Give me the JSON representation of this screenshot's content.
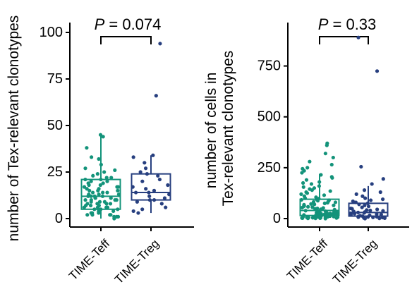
{
  "colors": {
    "teff": "#13937a",
    "treg": "#273f7f",
    "axis": "#000000"
  },
  "chart_data": [
    {
      "type": "box",
      "ylabel": "number of Tex-relevant clonotypes",
      "ylabel_lines": [
        "number of Tex-relevant clonotypes"
      ],
      "ylim": [
        0,
        100
      ],
      "yticks": [
        0,
        25,
        50,
        75,
        100
      ],
      "categories": [
        "TIME-Teff",
        "TIME-Treg"
      ],
      "annotation": {
        "label_italic": "P",
        "label_rest": " = 0.074"
      },
      "series": [
        {
          "name": "TIME-Teff",
          "color": "#13937a",
          "box": {
            "whisker_low": 0,
            "q1": 5,
            "median": 12,
            "q3": 21,
            "whisker_high": 45
          },
          "points": [
            45,
            44,
            38,
            33,
            32,
            29,
            27,
            26,
            25,
            24,
            23,
            22,
            22,
            21,
            21,
            20,
            20,
            19,
            19,
            18,
            18,
            17,
            17,
            17,
            16,
            16,
            15,
            15,
            15,
            14,
            14,
            14,
            13,
            13,
            13,
            12,
            12,
            12,
            12,
            11,
            11,
            11,
            10,
            10,
            10,
            10,
            9,
            9,
            9,
            8,
            8,
            8,
            8,
            7,
            7,
            7,
            6,
            6,
            6,
            6,
            5,
            5,
            5,
            5,
            4,
            4,
            4,
            3,
            3,
            3,
            2,
            2,
            2,
            2,
            1,
            1,
            1,
            0
          ]
        },
        {
          "name": "TIME-Treg",
          "color": "#273f7f",
          "box": {
            "whisker_low": 3,
            "q1": 10,
            "median": 14,
            "q3": 24,
            "whisker_high": 34
          },
          "points": [
            94,
            66,
            34,
            33,
            30,
            27,
            25,
            24,
            23,
            21,
            20,
            18,
            17,
            16,
            15,
            14,
            14,
            13,
            12,
            11,
            10,
            10,
            9,
            8,
            6,
            5,
            4,
            3
          ]
        }
      ]
    },
    {
      "type": "box",
      "ylabel": "number of cells in Tex-relevant clonotypes",
      "ylabel_lines": [
        "number of cells in",
        "Tex-relevant clonotypes"
      ],
      "ylim": [
        0,
        960
      ],
      "yticks": [
        0,
        250,
        500,
        750
      ],
      "categories": [
        "TIME-Teff",
        "TIME-Treg"
      ],
      "annotation": {
        "label_italic": "P",
        "label_rest": " = 0.33"
      },
      "series": [
        {
          "name": "TIME-Teff",
          "color": "#13937a",
          "box": {
            "whisker_low": 0,
            "q1": 15,
            "median": 40,
            "q3": 95,
            "whisker_high": 220
          },
          "points": [
            370,
            360,
            320,
            300,
            280,
            265,
            250,
            245,
            235,
            225,
            215,
            205,
            200,
            190,
            180,
            175,
            170,
            160,
            155,
            150,
            145,
            140,
            135,
            130,
            125,
            120,
            115,
            110,
            105,
            100,
            98,
            95,
            92,
            90,
            88,
            85,
            82,
            80,
            78,
            75,
            72,
            70,
            68,
            65,
            62,
            60,
            58,
            56,
            54,
            52,
            50,
            48,
            46,
            44,
            42,
            40,
            39,
            38,
            36,
            35,
            34,
            33,
            32,
            30,
            29,
            28,
            27,
            26,
            25,
            24,
            23,
            22,
            21,
            20,
            19,
            18,
            17,
            16,
            15,
            14,
            13,
            12,
            11,
            10,
            10,
            9,
            9,
            8,
            8,
            7,
            7,
            6,
            6,
            5,
            5,
            4,
            4,
            3,
            3,
            2,
            2,
            1,
            1,
            0
          ]
        },
        {
          "name": "TIME-Treg",
          "color": "#273f7f",
          "box": {
            "whisker_low": 0,
            "q1": 12,
            "median": 30,
            "q3": 75,
            "whisker_high": 160
          },
          "points": [
            890,
            725,
            255,
            195,
            170,
            140,
            130,
            120,
            110,
            100,
            95,
            90,
            85,
            80,
            75,
            70,
            65,
            60,
            55,
            50,
            48,
            45,
            42,
            40,
            38,
            35,
            32,
            30,
            28,
            26,
            24,
            22,
            20,
            18,
            16,
            14,
            12,
            10,
            9,
            8,
            7,
            6,
            5,
            4,
            3,
            2,
            1,
            0
          ]
        }
      ]
    }
  ]
}
